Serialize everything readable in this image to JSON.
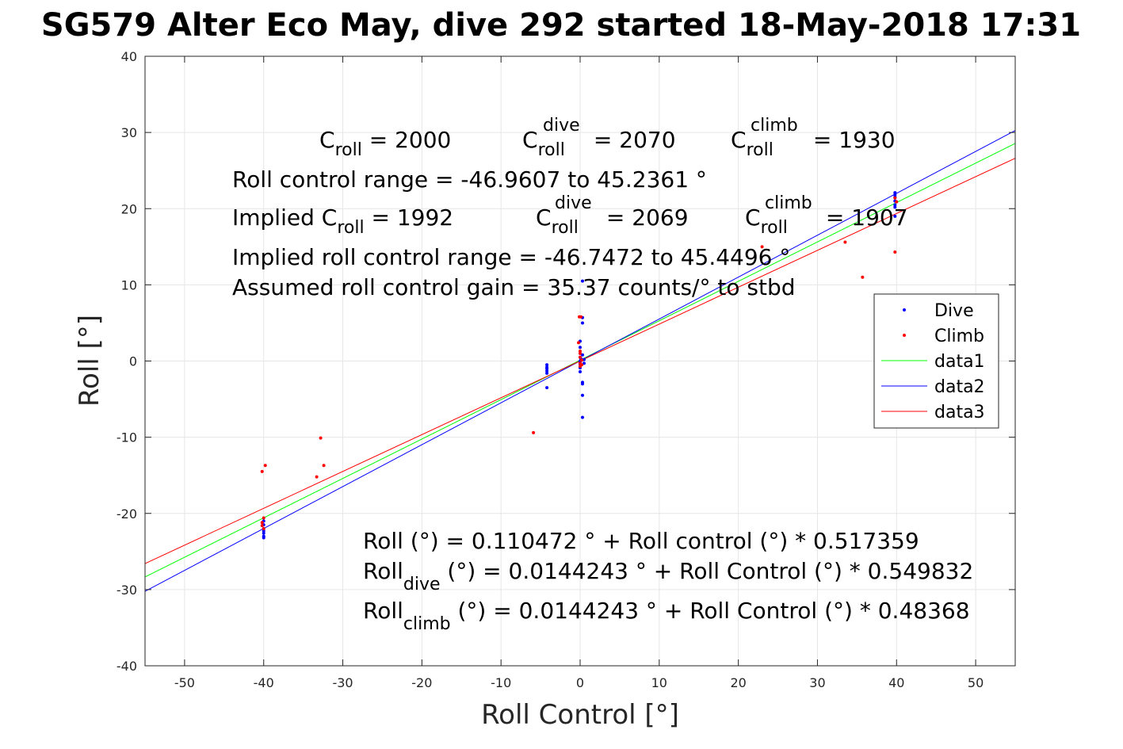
{
  "chart_data": {
    "type": "scatter",
    "title": "SG579 Alter Eco May, dive 292 started 18-May-2018 17:31",
    "xlabel": "Roll Control [°]",
    "ylabel": "Roll [°]",
    "xlim": [
      -55,
      55
    ],
    "ylim": [
      -40,
      40
    ],
    "xticks": [
      -50,
      -40,
      -30,
      -20,
      -10,
      0,
      10,
      20,
      30,
      40,
      50
    ],
    "yticks": [
      -40,
      -30,
      -20,
      -10,
      0,
      10,
      20,
      30,
      40
    ],
    "grid": true,
    "legend_position": "right",
    "series": [
      {
        "name": "Dive",
        "kind": "points",
        "color": "#0000ff",
        "points": [
          [
            -40,
            -21
          ],
          [
            -40,
            -21.5
          ],
          [
            -40,
            -22
          ],
          [
            -40,
            -22.3
          ],
          [
            -40,
            -22.6
          ],
          [
            -40,
            -23
          ],
          [
            -40,
            -23.2
          ],
          [
            -4.2,
            -0.5
          ],
          [
            -4.2,
            -0.8
          ],
          [
            -4.2,
            -1
          ],
          [
            -4.2,
            -1.3
          ],
          [
            -4.2,
            -1.6
          ],
          [
            -4.2,
            -3.5
          ],
          [
            0,
            0
          ],
          [
            0,
            0.5
          ],
          [
            0,
            1
          ],
          [
            0,
            1.8
          ],
          [
            0,
            2.6
          ],
          [
            0,
            -0.4
          ],
          [
            0,
            -0.9
          ],
          [
            0,
            -1.4
          ],
          [
            0,
            -0.2
          ],
          [
            0.1,
            0.3
          ],
          [
            0.3,
            0.8
          ],
          [
            0.3,
            -2.8
          ],
          [
            0.3,
            -3
          ],
          [
            0.3,
            -4.5
          ],
          [
            0.3,
            -7.4
          ],
          [
            0.3,
            5
          ],
          [
            0.3,
            5.7
          ],
          [
            0.3,
            10.5
          ],
          [
            0.5,
            0.2
          ],
          [
            0.5,
            -0.3
          ],
          [
            39.8,
            19
          ],
          [
            39.8,
            20.2
          ],
          [
            39.8,
            20.5
          ],
          [
            39.8,
            21
          ],
          [
            39.8,
            21.5
          ],
          [
            39.8,
            21.8
          ],
          [
            39.8,
            22.1
          ]
        ]
      },
      {
        "name": "Climb",
        "kind": "points",
        "color": "#ff0000",
        "points": [
          [
            -40.2,
            -14.5
          ],
          [
            -39.8,
            -13.7
          ],
          [
            -40.2,
            -21.2
          ],
          [
            -40.2,
            -21.6
          ],
          [
            -40,
            -20.6
          ],
          [
            -40,
            -22
          ],
          [
            -33.3,
            -15.2
          ],
          [
            -32.8,
            -10.1
          ],
          [
            -32.4,
            -13.7
          ],
          [
            -5.9,
            -9.4
          ],
          [
            0,
            0.5
          ],
          [
            0,
            1
          ],
          [
            0,
            1.3
          ],
          [
            0,
            -0.3
          ],
          [
            0,
            -0.7
          ],
          [
            0.2,
            0.1
          ],
          [
            0.2,
            -0.5
          ],
          [
            -0.2,
            2.4
          ],
          [
            0.1,
            5.8
          ],
          [
            -0.1,
            5.8
          ],
          [
            23,
            15
          ],
          [
            33.5,
            15.6
          ],
          [
            35.7,
            11
          ],
          [
            39.8,
            21.4
          ],
          [
            40,
            20.9
          ],
          [
            39.8,
            14.3
          ]
        ]
      },
      {
        "name": "data1",
        "kind": "line",
        "color": "#00ff00",
        "slope": 0.517359,
        "intercept": 0.110472
      },
      {
        "name": "data2",
        "kind": "line",
        "color": "#0000ff",
        "slope": 0.549832,
        "intercept": 0.0144243
      },
      {
        "name": "data3",
        "kind": "line",
        "color": "#ff0000",
        "slope": 0.48368,
        "intercept": 0.0144243
      }
    ]
  },
  "annotations": {
    "c_roll": [
      "C",
      "roll",
      " = 2000"
    ],
    "c_roll_dive": [
      "C",
      "roll",
      "dive",
      " = 2070"
    ],
    "c_roll_climb": [
      "C",
      "roll",
      "climb",
      " = 1930"
    ],
    "range": "Roll control range = -46.9607 to 45.2361 °",
    "implied_c_roll": [
      "Implied C",
      "roll",
      " = 1992"
    ],
    "implied_c_roll_dive": [
      "C",
      "roll",
      "dive",
      " = 2069"
    ],
    "implied_c_roll_climb": [
      "C",
      "roll",
      "climb",
      " = 1907"
    ],
    "implied_range": "Implied roll control range = -46.7472 to 45.4496 °",
    "gain": "Assumed roll control gain = 35.37 counts/° to stbd",
    "fit_all": "Roll (°) = 0.110472 ° + Roll control (°) * 0.517359",
    "fit_dive": [
      "Roll",
      "dive",
      " (°) = 0.0144243 ° + Roll Control (°) * 0.549832"
    ],
    "fit_climb": [
      "Roll",
      "climb",
      " (°) = 0.0144243 ° + Roll Control (°) * 0.48368"
    ]
  }
}
